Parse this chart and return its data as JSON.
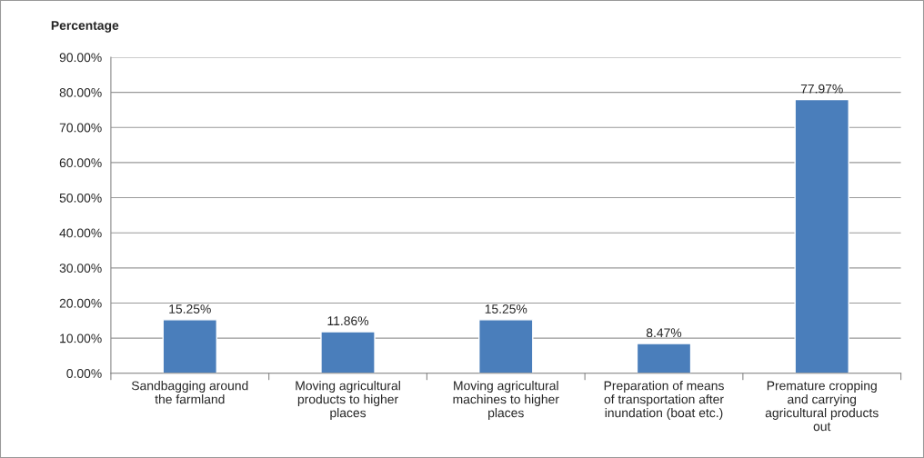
{
  "chart_data": {
    "type": "bar",
    "ylabel": "Percentage",
    "categories": [
      "Sandbagging around\nthe farmland",
      "Moving agricultural\nproducts to higher\nplaces",
      "Moving agricultural\nmachines to higher\nplaces",
      "Preparation of means\nof transportation after\ninundation (boat etc.)",
      "Premature cropping\nand carrying\nagricultural products\nout"
    ],
    "values": [
      15.25,
      11.86,
      15.25,
      8.47,
      77.97
    ],
    "value_labels": [
      "15.25%",
      "11.86%",
      "15.25%",
      "8.47%",
      "77.97%"
    ],
    "color": "#4a7ebb",
    "ylim": [
      0,
      90
    ],
    "yticks": [
      {
        "value": 0,
        "label": "0.00%"
      },
      {
        "value": 10,
        "label": "10.00%"
      },
      {
        "value": 20,
        "label": "20.00%"
      },
      {
        "value": 30,
        "label": "30.00%"
      },
      {
        "value": 40,
        "label": "40.00%"
      },
      {
        "value": 50,
        "label": "50.00%"
      },
      {
        "value": 60,
        "label": "60.00%"
      },
      {
        "value": 70,
        "label": "70.00%"
      },
      {
        "value": 80,
        "label": "80.00%"
      },
      {
        "value": 90,
        "label": "90.00%"
      }
    ],
    "grid": "y"
  }
}
